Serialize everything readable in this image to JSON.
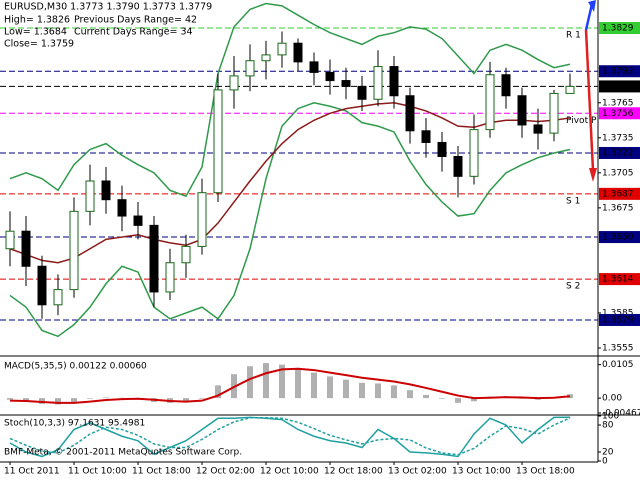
{
  "chart_data": [
    {
      "type": "candlestick",
      "title": "EURUSD,M30  1.3773 1.3790 1.3773 1.3779",
      "info_left": [
        "High= 1.3826",
        "Low= 1.3684",
        "Close= 1.3759"
      ],
      "info_right": [
        "Previous Days Range= 42",
        "Current Days Range= 34"
      ],
      "categories": [
        "11 Oct 2011",
        null,
        null,
        null,
        "11 Oct 10:00",
        null,
        null,
        null,
        "11 Oct 18:00",
        null,
        null,
        null,
        "12 Oct 02:00",
        null,
        null,
        null,
        "12 Oct 10:00",
        null,
        null,
        null,
        "12 Oct 18:00",
        null,
        null,
        null,
        "13 Oct 02:00",
        null,
        null,
        null,
        "13 Oct 10:00",
        null,
        null,
        null,
        "13 Oct 18:00",
        null,
        null,
        null
      ],
      "open": [
        1.364,
        1.3655,
        1.3625,
        1.3592,
        1.3605,
        1.3672,
        1.3698,
        1.3682,
        1.3668,
        1.366,
        1.3603,
        1.3628,
        1.3642,
        1.3688,
        1.3776,
        1.3788,
        1.3801,
        1.3806,
        1.3816,
        1.38,
        1.3791,
        1.3784,
        1.3779,
        1.3768,
        1.3796,
        1.3771,
        1.3741,
        1.3731,
        1.3719,
        1.3702,
        1.3742,
        1.3789,
        1.3771,
        1.3746,
        1.3739,
        1.3773
      ],
      "high": [
        1.3672,
        1.3668,
        1.3634,
        1.3618,
        1.3684,
        1.3712,
        1.371,
        1.3694,
        1.368,
        1.3668,
        1.364,
        1.3652,
        1.37,
        1.379,
        1.3805,
        1.3815,
        1.3818,
        1.3826,
        1.382,
        1.3808,
        1.3802,
        1.3795,
        1.3788,
        1.381,
        1.3805,
        1.3778,
        1.3752,
        1.374,
        1.3728,
        1.3755,
        1.38,
        1.3795,
        1.3778,
        1.376,
        1.3776,
        1.379
      ],
      "low": [
        1.3625,
        1.3608,
        1.358,
        1.3583,
        1.3598,
        1.366,
        1.367,
        1.3655,
        1.3648,
        1.359,
        1.3596,
        1.3615,
        1.3635,
        1.368,
        1.376,
        1.3775,
        1.3785,
        1.3795,
        1.3792,
        1.378,
        1.3772,
        1.3768,
        1.3758,
        1.3762,
        1.376,
        1.373,
        1.3718,
        1.3706,
        1.3684,
        1.3695,
        1.3735,
        1.376,
        1.3735,
        1.3725,
        1.3732,
        1.3773
      ],
      "close": [
        1.3655,
        1.3625,
        1.3592,
        1.3605,
        1.3672,
        1.3698,
        1.3682,
        1.3668,
        1.366,
        1.3603,
        1.3628,
        1.3642,
        1.3688,
        1.3776,
        1.3788,
        1.3801,
        1.3806,
        1.3816,
        1.38,
        1.3791,
        1.3784,
        1.3779,
        1.3768,
        1.3796,
        1.3771,
        1.3741,
        1.3731,
        1.3719,
        1.3702,
        1.3742,
        1.3789,
        1.3771,
        1.3746,
        1.3739,
        1.3773,
        1.3779
      ],
      "lines": [
        {
          "color": "#2e9a4a",
          "values": [
            1.37,
            1.3705,
            1.37,
            1.369,
            1.3712,
            1.3725,
            1.373,
            1.372,
            1.3712,
            1.3705,
            1.369,
            1.3685,
            1.371,
            1.379,
            1.383,
            1.3845,
            1.385,
            1.3848,
            1.384,
            1.3832,
            1.3825,
            1.382,
            1.3815,
            1.3822,
            1.3825,
            1.383,
            1.3828,
            1.382,
            1.3805,
            1.379,
            1.381,
            1.3815,
            1.381,
            1.3802,
            1.3795,
            1.3798
          ]
        },
        {
          "color": "#2e9a4a",
          "values": [
            1.36,
            1.359,
            1.357,
            1.3565,
            1.3575,
            1.359,
            1.361,
            1.3625,
            1.362,
            1.359,
            1.358,
            1.3585,
            1.359,
            1.358,
            1.36,
            1.364,
            1.37,
            1.3745,
            1.376,
            1.3765,
            1.3762,
            1.3758,
            1.3748,
            1.3745,
            1.374,
            1.3715,
            1.3695,
            1.368,
            1.3668,
            1.367,
            1.369,
            1.3705,
            1.3712,
            1.3718,
            1.3722,
            1.3725
          ]
        },
        {
          "color": "#8b1a1a",
          "values": [
            1.364,
            1.3635,
            1.363,
            1.3628,
            1.3632,
            1.364,
            1.3648,
            1.365,
            1.3652,
            1.3648,
            1.3645,
            1.3643,
            1.3648,
            1.3662,
            1.368,
            1.3698,
            1.3715,
            1.373,
            1.3742,
            1.375,
            1.3756,
            1.376,
            1.3762,
            1.3764,
            1.3765,
            1.3762,
            1.3758,
            1.3752,
            1.3745,
            1.3744,
            1.3748,
            1.375,
            1.375,
            1.3749,
            1.375,
            1.3752
          ]
        }
      ],
      "ylim": [
        1.3549,
        1.3853
      ],
      "yticks": [
        1.3765,
        1.3735,
        1.3705,
        1.3675,
        1.3585,
        1.3555
      ],
      "levels": [
        {
          "value": 1.3829,
          "label": "1.3829",
          "name": "R 1",
          "color": "#33cc33"
        },
        {
          "value": 1.3792,
          "label": "1.3792",
          "color": "#000080"
        },
        {
          "value": 1.3779,
          "label": "1.3779",
          "color": "#000000"
        },
        {
          "value": 1.3756,
          "label": "1.3756",
          "name": "Pivot P",
          "color": "#ff00ff"
        },
        {
          "value": 1.3722,
          "label": "1.3722",
          "color": "#000080"
        },
        {
          "value": 1.3687,
          "label": "1.3687",
          "name": "S 1",
          "color": "#e00000"
        },
        {
          "value": 1.365,
          "label": "1.3650",
          "color": "#000080"
        },
        {
          "value": 1.3614,
          "label": "1.3614",
          "name": "S 2",
          "color": "#e00000"
        },
        {
          "value": 1.3579,
          "label": "1.3579",
          "color": "#000080"
        }
      ]
    },
    {
      "type": "macd",
      "title": "MACD(5,35,5) 0.00122 0.00060",
      "values": [
        -0.0005,
        -0.001,
        -0.0018,
        -0.002,
        -0.0012,
        -0.0002,
        0.0002,
        0.0001,
        -0.0001,
        -0.0012,
        -0.0015,
        -0.0012,
        -0.0002,
        0.004,
        0.0075,
        0.01,
        0.011,
        0.0105,
        0.0092,
        0.008,
        0.0068,
        0.0058,
        0.0048,
        0.0046,
        0.004,
        0.0025,
        0.001,
        -0.0002,
        -0.0015,
        -0.001,
        0.0005,
        0.0005,
        -0.0002,
        -0.0005,
        0.0002,
        0.00122
      ],
      "color": "#b0b0b0",
      "signal": [
        -0.0008,
        -0.0009,
        -0.0012,
        -0.0015,
        -0.0015,
        -0.0011,
        -0.0006,
        -0.0003,
        -0.0002,
        -0.0005,
        -0.0009,
        -0.0011,
        -0.0008,
        0.0008,
        0.0035,
        0.006,
        0.0078,
        0.009,
        0.0092,
        0.0088,
        0.008,
        0.0072,
        0.0064,
        0.0058,
        0.0052,
        0.0043,
        0.0032,
        0.002,
        0.0008,
        0.0,
        0.0001,
        0.0003,
        0.0002,
        0.0,
        0.0001,
        0.0006
      ],
      "signal_color": "#cc0000",
      "ylim": [
        -0.00467,
        0.0129
      ],
      "yticks": [
        0.0105,
        {
          "value": 0,
          "label": "0.00"
        },
        -0.00467
      ]
    },
    {
      "type": "stochastic",
      "title": "Stoch(10,3,3) 97.1631 95.4981",
      "annotation": "BMF-Meta, © 2001-2011 MetaQuotes Software Corp.",
      "values": [
        40,
        20,
        10,
        25,
        70,
        85,
        70,
        55,
        45,
        15,
        30,
        45,
        70,
        95,
        95,
        97,
        95,
        92,
        70,
        55,
        45,
        40,
        30,
        70,
        50,
        20,
        18,
        15,
        10,
        60,
        95,
        80,
        40,
        70,
        97,
        97.1631
      ],
      "color": "#20a0a0",
      "signal": [
        50,
        35,
        22,
        18,
        35,
        60,
        75,
        70,
        57,
        38,
        30,
        30,
        48,
        70,
        87,
        96,
        96,
        95,
        86,
        72,
        57,
        47,
        38,
        47,
        50,
        47,
        29,
        18,
        14,
        28,
        55,
        78,
        72,
        60,
        80,
        95.4981
      ],
      "signal_color": "#20a0a0",
      "ylim": [
        0,
        100
      ],
      "yticks": [
        100,
        80,
        20,
        0
      ]
    }
  ]
}
